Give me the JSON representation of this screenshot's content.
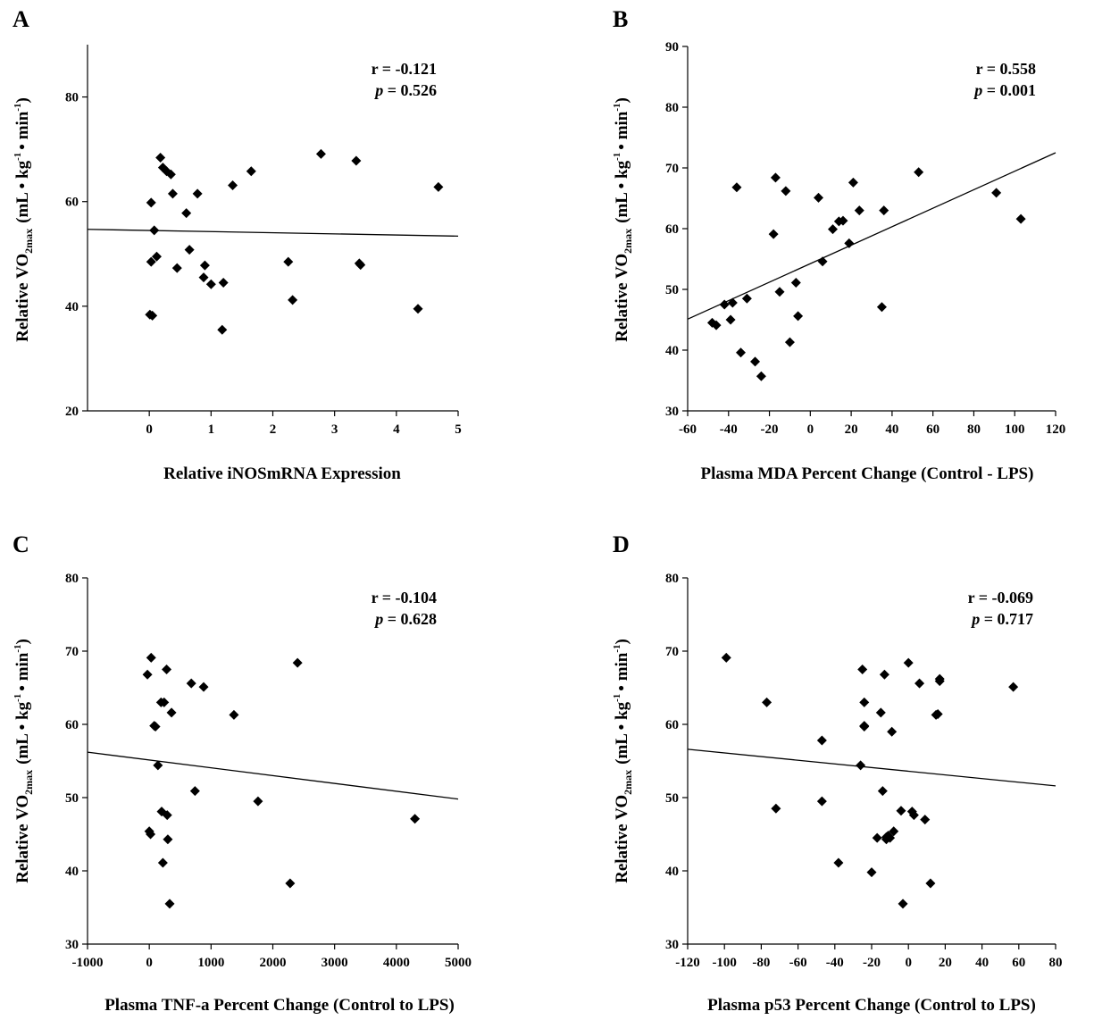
{
  "chart_data": [
    {
      "panel": "A",
      "type": "scatter",
      "xlabel": "Relative iNOSmRNA Expression",
      "ylabel": "Relative VO",
      "ylabel_sub": "2max",
      "ylabel_unit_lead": "(mL • kg",
      "ylabel_unit_exp1": "-1",
      "ylabel_unit_mid": "• min",
      "ylabel_unit_exp2": "-1",
      "ylabel_unit_end": ")",
      "xlim": [
        -1,
        5
      ],
      "ylim": [
        20,
        90
      ],
      "xticks": [
        0,
        1,
        2,
        3,
        4,
        5
      ],
      "yticks": [
        20,
        40,
        60,
        80
      ],
      "stat_r": "r = -0.121",
      "stat_p_symbol": "p",
      "stat_p_value": " = 0.526",
      "fit": {
        "x": [
          -1,
          5
        ],
        "y": [
          54.7,
          53.4
        ]
      },
      "x": [
        0.01,
        0.03,
        0.03,
        0.05,
        0.08,
        0.12,
        0.18,
        0.22,
        0.28,
        0.35,
        0.38,
        0.45,
        0.6,
        0.65,
        0.78,
        0.88,
        0.9,
        1.0,
        1.18,
        1.2,
        1.35,
        1.65,
        2.25,
        2.32,
        2.78,
        3.35,
        3.4,
        3.42,
        4.35,
        4.68
      ],
      "y": [
        38.4,
        48.5,
        59.8,
        38.2,
        54.5,
        49.5,
        68.4,
        66.5,
        65.8,
        65.2,
        61.5,
        47.3,
        57.8,
        50.8,
        61.5,
        45.5,
        47.8,
        44.2,
        35.5,
        44.5,
        63.1,
        65.8,
        48.5,
        41.2,
        69.1,
        67.8,
        48.2,
        47.9,
        39.5,
        62.8
      ]
    },
    {
      "panel": "B",
      "type": "scatter",
      "xlabel": "Plasma MDA Percent Change (Control - LPS)",
      "ylabel": "Relative VO",
      "ylabel_sub": "2max",
      "ylabel_unit_lead": "(mL • kg",
      "ylabel_unit_exp1": "-1",
      "ylabel_unit_mid": "• min",
      "ylabel_unit_exp2": "-1",
      "ylabel_unit_end": ")",
      "xlim": [
        -60,
        120
      ],
      "ylim": [
        30,
        90
      ],
      "xticks": [
        -60,
        -40,
        -20,
        0,
        20,
        40,
        60,
        80,
        100,
        120
      ],
      "yticks": [
        30,
        40,
        50,
        60,
        70,
        80,
        90
      ],
      "stat_r": "r = 0.558",
      "stat_p_symbol": "p",
      "stat_p_value": " = 0.001",
      "fit": {
        "x": [
          -60,
          120
        ],
        "y": [
          45.1,
          72.5
        ]
      },
      "x": [
        -48,
        -46,
        -42,
        -39,
        -38,
        -36,
        -34,
        -31,
        -27,
        -24,
        -18,
        -17,
        -15,
        -12,
        -10,
        -7,
        -6,
        4,
        6,
        11,
        14,
        16,
        19,
        21,
        24,
        35,
        36,
        53,
        91,
        103
      ],
      "y": [
        44.5,
        44.1,
        47.5,
        45.0,
        47.8,
        66.8,
        39.6,
        48.5,
        38.1,
        35.7,
        59.1,
        68.4,
        49.6,
        66.2,
        41.3,
        51.1,
        45.6,
        65.1,
        54.6,
        59.9,
        61.2,
        61.3,
        57.6,
        67.6,
        63.0,
        47.1,
        63.0,
        69.3,
        65.9,
        61.6
      ]
    },
    {
      "panel": "C",
      "type": "scatter",
      "xlabel": "Plasma TNF-a Percent Change (Control to LPS)",
      "ylabel": "Relative VO",
      "ylabel_sub": "2max",
      "ylabel_unit_lead": "(mL • kg",
      "ylabel_unit_exp1": "-1",
      "ylabel_unit_mid": "• min",
      "ylabel_unit_exp2": "-1",
      "ylabel_unit_end": ")",
      "xlim": [
        -1000,
        5000
      ],
      "ylim": [
        30,
        80
      ],
      "xticks": [
        -1000,
        0,
        1000,
        2000,
        3000,
        4000,
        5000
      ],
      "yticks": [
        30,
        40,
        50,
        60,
        70,
        80
      ],
      "stat_r": "r = -0.104",
      "stat_p_symbol": "p",
      "stat_p_value": " = 0.628",
      "fit": {
        "x": [
          -1000,
          5000
        ],
        "y": [
          56.2,
          49.8
        ]
      },
      "x": [
        -30,
        0,
        20,
        30,
        80,
        100,
        140,
        190,
        200,
        220,
        240,
        280,
        290,
        300,
        330,
        360,
        680,
        740,
        880,
        1370,
        1760,
        2280,
        2400,
        4300
      ],
      "y": [
        66.8,
        45.4,
        45.0,
        69.1,
        59.8,
        59.7,
        54.4,
        63.0,
        48.1,
        41.1,
        63.0,
        67.5,
        47.6,
        44.3,
        35.5,
        61.6,
        65.6,
        50.9,
        65.1,
        61.3,
        49.5,
        38.3,
        68.4,
        47.1
      ]
    },
    {
      "panel": "D",
      "type": "scatter",
      "xlabel": "Plasma p53 Percent Change (Control to LPS)",
      "ylabel": "Relative VO",
      "ylabel_sub": "2max",
      "ylabel_unit_lead": "(mL • kg",
      "ylabel_unit_exp1": "-1",
      "ylabel_unit_mid": "• min",
      "ylabel_unit_exp2": "-1",
      "ylabel_unit_end": ")",
      "xlim": [
        -120,
        80
      ],
      "ylim": [
        30,
        80
      ],
      "xticks": [
        -120,
        -100,
        -80,
        -60,
        -40,
        -20,
        0,
        20,
        40,
        60,
        80
      ],
      "yticks": [
        30,
        40,
        50,
        60,
        70,
        80
      ],
      "stat_r": "r = -0.069",
      "stat_p_symbol": "p",
      "stat_p_value": " = 0.717",
      "fit": {
        "x": [
          -120,
          80
        ],
        "y": [
          56.6,
          51.6
        ]
      },
      "x": [
        -99,
        -77,
        -72,
        -47,
        -47,
        -38,
        -26,
        -25,
        -24,
        -24,
        -24,
        -20,
        -17,
        -15,
        -14,
        -13,
        -12,
        -12,
        -11,
        -10,
        -9,
        -8,
        -4,
        -3,
        0,
        2,
        3,
        6,
        9,
        12,
        15,
        16,
        17,
        17,
        57
      ],
      "y": [
        69.1,
        63.0,
        48.5,
        57.8,
        49.5,
        41.1,
        54.4,
        67.5,
        59.8,
        59.7,
        63.0,
        39.8,
        44.5,
        61.6,
        50.9,
        66.8,
        44.3,
        44.6,
        44.8,
        44.5,
        59.0,
        45.4,
        48.2,
        35.5,
        68.4,
        48.1,
        47.6,
        65.6,
        47.0,
        38.3,
        61.3,
        61.4,
        66.2,
        65.9,
        65.1
      ]
    }
  ]
}
